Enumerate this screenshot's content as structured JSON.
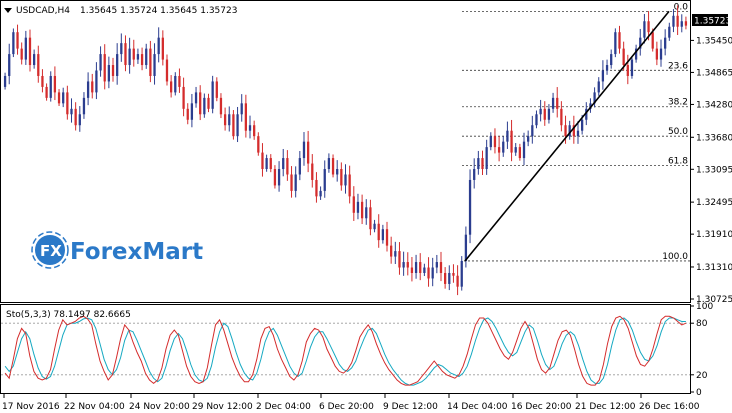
{
  "header": {
    "symbol": "USDCAD,H4",
    "ohlc": "1.35645 1.35724 1.35645 1.35723",
    "arrow_icon": "triangle-down-icon"
  },
  "logo": {
    "text": "ForexMart",
    "badge": "FX",
    "brand_color": "#2b79c8"
  },
  "indicator": {
    "label": "Sto(5,3,3) 78.1497 82.6665",
    "main_color": "#d42c2c",
    "signal_color": "#16a9c2"
  },
  "colors": {
    "bull": "#2b3d8f",
    "bear": "#d42c2c",
    "trendline": "#000000",
    "price_box": "#000000"
  },
  "chart_data": [
    {
      "type": "candlestick",
      "symbol": "USDCAD",
      "timeframe": "H4",
      "ylim": [
        1.3067,
        1.3617
      ],
      "y_ticks": [
        "1.35450",
        "1.34865",
        "1.34280",
        "1.33680",
        "1.33095",
        "1.32495",
        "1.31910",
        "1.31310",
        "1.30725"
      ],
      "x_ticks": [
        "17 Nov 2016",
        "22 Nov 04:00",
        "24 Nov 20:00",
        "29 Nov 12:00",
        "2 Dec 04:00",
        "6 Dec 20:00",
        "9 Dec 12:00",
        "14 Dec 04:00",
        "16 Dec 20:00",
        "21 Dec 12:00",
        "26 Dec 16:00"
      ],
      "current_price": "1.35723",
      "fibonacci": {
        "low": 1.3142,
        "high": 1.3598,
        "levels": [
          {
            "label": "0.0",
            "ratio": 0
          },
          {
            "label": "23.6",
            "ratio": 0.236
          },
          {
            "label": "38.2",
            "ratio": 0.382
          },
          {
            "label": "50.0",
            "ratio": 0.5
          },
          {
            "label": "61.8",
            "ratio": 0.618
          },
          {
            "label": "100.0",
            "ratio": 1
          }
        ]
      },
      "trendline": {
        "from": 1.3142,
        "to": 1.3598
      },
      "close": [
        1.348,
        1.352,
        1.356,
        1.353,
        1.351,
        1.355,
        1.35,
        1.352,
        1.348,
        1.346,
        1.344,
        1.348,
        1.345,
        1.343,
        1.345,
        1.341,
        1.342,
        1.339,
        1.341,
        1.344,
        1.347,
        1.345,
        1.349,
        1.352,
        1.347,
        1.35,
        1.348,
        1.352,
        1.354,
        1.35,
        1.353,
        1.351,
        1.352,
        1.35,
        1.353,
        1.348,
        1.352,
        1.355,
        1.351,
        1.347,
        1.345,
        1.348,
        1.346,
        1.342,
        1.34,
        1.343,
        1.345,
        1.341,
        1.344,
        1.342,
        1.347,
        1.344,
        1.341,
        1.339,
        1.341,
        1.337,
        1.341,
        1.343,
        1.338,
        1.339,
        1.337,
        1.334,
        1.331,
        1.333,
        1.331,
        1.328,
        1.331,
        1.333,
        1.33,
        1.327,
        1.33,
        1.333,
        1.336,
        1.332,
        1.329,
        1.326,
        1.327,
        1.331,
        1.333,
        1.33,
        1.331,
        1.328,
        1.33,
        1.326,
        1.323,
        1.325,
        1.322,
        1.324,
        1.32,
        1.321,
        1.318,
        1.32,
        1.317,
        1.315,
        1.316,
        1.313,
        1.314,
        1.313,
        1.312,
        1.314,
        1.312,
        1.313,
        1.311,
        1.313,
        1.314,
        1.312,
        1.31,
        1.312,
        1.3115,
        1.3095,
        1.3142,
        1.319,
        1.329,
        1.331,
        1.333,
        1.331,
        1.335,
        1.337,
        1.335,
        1.334,
        1.336,
        1.338,
        1.334,
        1.335,
        1.333,
        1.336,
        1.337,
        1.339,
        1.341,
        1.342,
        1.34,
        1.342,
        1.344,
        1.342,
        1.339,
        1.337,
        1.339,
        1.337,
        1.338,
        1.34,
        1.342,
        1.343,
        1.345,
        1.347,
        1.349,
        1.35,
        1.352,
        1.356,
        1.353,
        1.35,
        1.348,
        1.351,
        1.353,
        1.355,
        1.358,
        1.356,
        1.353,
        1.351,
        1.353,
        1.355,
        1.357,
        1.359,
        1.357,
        1.358,
        1.3572
      ],
      "stochastic": {
        "main": [
          22,
          16,
          38,
          62,
          74,
          68,
          42,
          24,
          16,
          14,
          16,
          26,
          50,
          72,
          84,
          78,
          80,
          82,
          86,
          88,
          85,
          78,
          56,
          36,
          24,
          14,
          20,
          40,
          62,
          78,
          72,
          58,
          46,
          36,
          22,
          14,
          10,
          14,
          28,
          50,
          66,
          72,
          66,
          48,
          30,
          18,
          12,
          10,
          12,
          28,
          54,
          78,
          84,
          72,
          56,
          40,
          28,
          18,
          12,
          12,
          20,
          38,
          62,
          74,
          76,
          66,
          50,
          38,
          28,
          18,
          14,
          20,
          36,
          58,
          68,
          74,
          72,
          64,
          50,
          40,
          30,
          24,
          22,
          26,
          34,
          48,
          64,
          72,
          78,
          70,
          56,
          44,
          34,
          26,
          20,
          14,
          10,
          8,
          8,
          10,
          12,
          18,
          24,
          30,
          36,
          30,
          24,
          20,
          18,
          16,
          20,
          30,
          44,
          62,
          78,
          86,
          86,
          80,
          70,
          60,
          50,
          42,
          38,
          46,
          60,
          74,
          82,
          74,
          56,
          38,
          26,
          22,
          28,
          44,
          60,
          70,
          72,
          66,
          50,
          32,
          18,
          10,
          8,
          8,
          14,
          32,
          56,
          76,
          86,
          88,
          84,
          74,
          58,
          42,
          32,
          30,
          36,
          50,
          68,
          84,
          88,
          88,
          86,
          82,
          78,
          80
        ],
        "signal": [
          30,
          24,
          30,
          46,
          62,
          70,
          62,
          44,
          28,
          18,
          15,
          18,
          30,
          48,
          66,
          78,
          80,
          80,
          82,
          85,
          86,
          84,
          74,
          56,
          38,
          26,
          20,
          26,
          40,
          60,
          72,
          70,
          60,
          48,
          36,
          24,
          16,
          12,
          16,
          30,
          48,
          62,
          68,
          62,
          48,
          32,
          20,
          14,
          12,
          16,
          30,
          52,
          70,
          80,
          76,
          62,
          46,
          32,
          22,
          16,
          14,
          22,
          38,
          58,
          70,
          74,
          66,
          54,
          42,
          30,
          22,
          18,
          22,
          36,
          52,
          64,
          70,
          70,
          62,
          52,
          42,
          32,
          26,
          24,
          28,
          36,
          50,
          62,
          72,
          74,
          68,
          56,
          44,
          34,
          26,
          20,
          14,
          10,
          8,
          8,
          10,
          12,
          16,
          22,
          28,
          32,
          30,
          26,
          22,
          20,
          18,
          22,
          30,
          44,
          60,
          74,
          84,
          86,
          82,
          74,
          64,
          54,
          46,
          42,
          46,
          58,
          70,
          78,
          74,
          60,
          44,
          32,
          26,
          30,
          42,
          56,
          66,
          70,
          66,
          54,
          38,
          24,
          14,
          10,
          10,
          16,
          32,
          54,
          72,
          84,
          86,
          82,
          72,
          58,
          46,
          38,
          36,
          42,
          54,
          70,
          82,
          86,
          86,
          84,
          82,
          82
        ],
        "levels": [
          80,
          20
        ],
        "y_ticks": [
          "100",
          "80",
          "20",
          "0"
        ]
      }
    }
  ]
}
